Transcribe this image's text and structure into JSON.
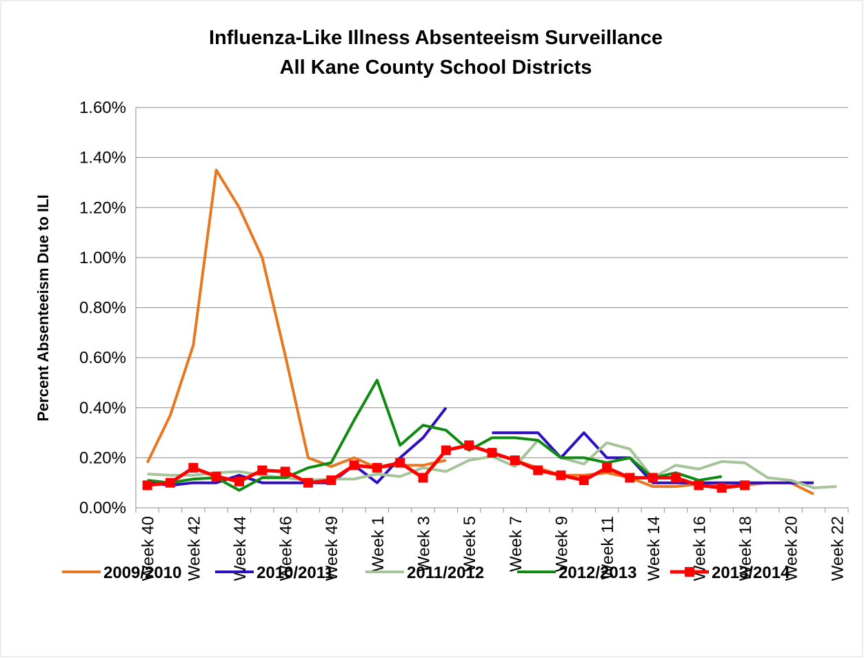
{
  "chart_data": {
    "type": "line",
    "title": [
      "Influenza-Like Illness Absenteeism Surveillance",
      "All Kane County School Districts"
    ],
    "y_label": "Percent Absenteeism Due to ILI",
    "categories": [
      "Week 40",
      null,
      "Week 42",
      null,
      "Week 44",
      null,
      "Week 46",
      null,
      "Week 49",
      null,
      "Week 1",
      null,
      "Week 3",
      null,
      "Week 5",
      null,
      "Week 7",
      null,
      "Week 9",
      null,
      "Week 11",
      null,
      "Week 14",
      null,
      "Week 16",
      null,
      "Week 18",
      null,
      "Week 20",
      null,
      "Week 22"
    ],
    "ylim": [
      0,
      1.6
    ],
    "yticks": [
      {
        "value": 0,
        "label": "0.00%"
      },
      {
        "value": 0.2,
        "label": "0.20%"
      },
      {
        "value": 0.4,
        "label": "0.40%"
      },
      {
        "value": 0.6,
        "label": "0.60%"
      },
      {
        "value": 0.8,
        "label": "0.80%"
      },
      {
        "value": 1.0,
        "label": "1.00%"
      },
      {
        "value": 1.2,
        "label": "1.20%"
      },
      {
        "value": 1.4,
        "label": "1.40%"
      },
      {
        "value": 1.6,
        "label": "1.60%"
      }
    ],
    "grid": true,
    "legend": "bottom",
    "series": [
      {
        "name": "2009/2010",
        "color": "#e87722",
        "values": [
          0.18,
          0.37,
          0.65,
          1.35,
          1.2,
          1.0,
          0.61,
          0.2,
          0.165,
          0.2,
          0.16,
          0.17,
          0.17,
          0.19,
          null,
          0.22,
          0.19,
          0.16,
          0.13,
          0.13,
          0.14,
          0.12,
          0.085,
          0.085,
          0.095,
          0.09,
          0.09,
          0.1,
          0.1,
          0.055,
          null
        ]
      },
      {
        "name": "2010/2011",
        "color": "#2e0fbf",
        "values": [
          0.1,
          0.09,
          0.1,
          0.1,
          0.13,
          0.1,
          0.1,
          0.1,
          0.1,
          0.17,
          0.1,
          0.2,
          0.28,
          0.4,
          null,
          0.3,
          0.3,
          0.3,
          0.2,
          0.3,
          0.2,
          0.2,
          0.1,
          0.1,
          0.1,
          0.1,
          0.1,
          0.1,
          0.1,
          0.1,
          null
        ]
      },
      {
        "name": "2011/2012",
        "color": "#a6c49a",
        "values": [
          0.135,
          0.13,
          0.13,
          0.14,
          0.145,
          0.13,
          0.12,
          0.11,
          0.115,
          0.115,
          0.135,
          0.125,
          0.16,
          0.145,
          0.19,
          0.205,
          0.165,
          0.27,
          0.2,
          0.175,
          0.26,
          0.235,
          0.12,
          0.17,
          0.155,
          0.185,
          0.18,
          0.12,
          0.11,
          0.08,
          0.085
        ]
      },
      {
        "name": "2012/2013",
        "color": "#118a11",
        "values": [
          0.11,
          0.1,
          0.115,
          0.12,
          0.07,
          0.12,
          0.12,
          0.16,
          0.18,
          0.35,
          0.51,
          0.25,
          0.33,
          0.31,
          0.23,
          0.28,
          0.28,
          0.27,
          0.2,
          0.2,
          0.18,
          0.2,
          0.12,
          0.14,
          0.11,
          0.125,
          null,
          null,
          null,
          null,
          null
        ]
      },
      {
        "name": "2013/2014",
        "color": "#ff0000",
        "marker": "square",
        "values": [
          0.09,
          0.1,
          0.16,
          0.125,
          0.105,
          0.15,
          0.145,
          0.1,
          0.11,
          0.17,
          0.16,
          0.18,
          0.12,
          0.23,
          0.25,
          0.22,
          0.19,
          0.15,
          0.13,
          0.11,
          0.16,
          0.12,
          0.12,
          0.12,
          0.09,
          0.08,
          0.09,
          null,
          null,
          null,
          null
        ]
      }
    ]
  }
}
